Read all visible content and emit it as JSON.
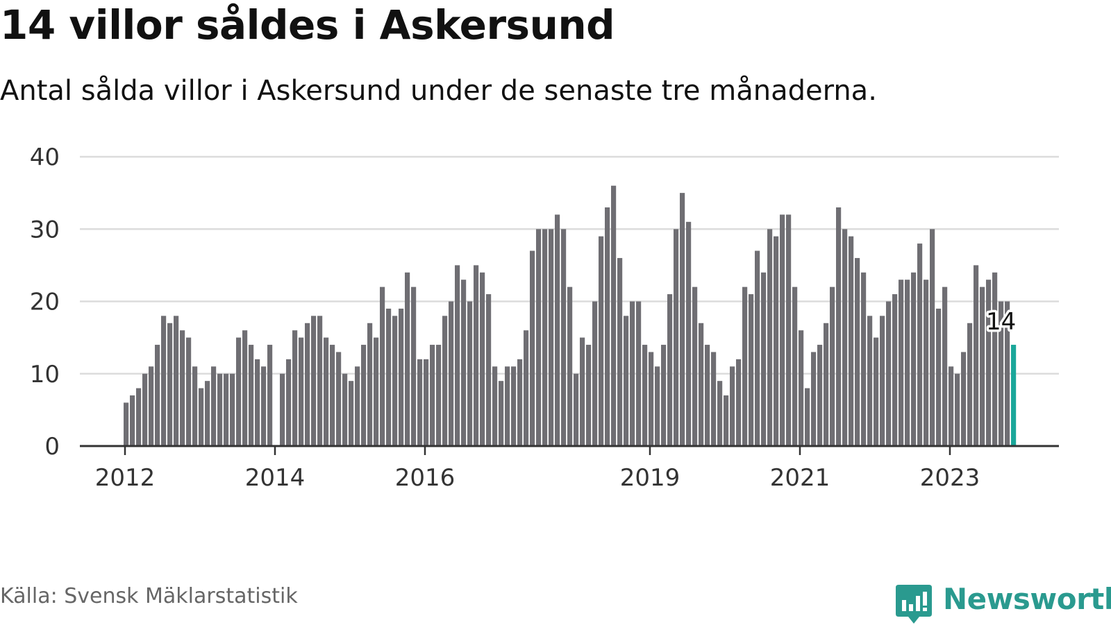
{
  "header": {
    "title": "14 villor såldes i Askersund",
    "subtitle": "Antal sålda villor i Askersund under de senaste tre månaderna."
  },
  "footer": {
    "source": "Källa: Svensk Mäklarstatistik",
    "brand": "Newsworthy"
  },
  "colors": {
    "bar": "#6f6e73",
    "highlight": "#1aa79a",
    "brand": "#2a9a8f",
    "grid": "#dcdcdc",
    "axis": "#333333"
  },
  "icons": {
    "brand_logo": "newsworthy-chart-bubble-icon"
  },
  "chart_data": {
    "type": "bar",
    "x_start": "2012-01",
    "ylim": [
      0,
      40
    ],
    "yticks": [
      0,
      10,
      20,
      30,
      40
    ],
    "xtick_labels": [
      {
        "label": "2012",
        "date": "2012-01"
      },
      {
        "label": "2014",
        "date": "2014-01"
      },
      {
        "label": "2016",
        "date": "2016-01"
      },
      {
        "label": "2019",
        "date": "2019-01"
      },
      {
        "label": "2021",
        "date": "2021-01"
      },
      {
        "label": "2023",
        "date": "2023-01"
      }
    ],
    "annotation": {
      "label": "14",
      "date": "2023-09",
      "value": 14
    },
    "values": [
      6,
      7,
      8,
      10,
      11,
      14,
      18,
      17,
      18,
      16,
      15,
      11,
      8,
      9,
      11,
      10,
      10,
      10,
      15,
      16,
      14,
      12,
      11,
      14,
      null,
      10,
      12,
      16,
      15,
      17,
      18,
      18,
      15,
      14,
      13,
      10,
      9,
      11,
      14,
      17,
      15,
      22,
      19,
      18,
      19,
      24,
      22,
      12,
      12,
      14,
      14,
      18,
      20,
      25,
      23,
      20,
      25,
      24,
      21,
      11,
      9,
      11,
      11,
      12,
      16,
      27,
      30,
      30,
      30,
      32,
      30,
      22,
      10,
      15,
      14,
      20,
      29,
      33,
      36,
      26,
      18,
      20,
      20,
      14,
      13,
      11,
      14,
      21,
      30,
      35,
      31,
      22,
      17,
      14,
      13,
      9,
      7,
      11,
      12,
      22,
      21,
      27,
      24,
      30,
      29,
      32,
      32,
      22,
      16,
      8,
      13,
      14,
      17,
      22,
      33,
      30,
      29,
      26,
      24,
      18,
      15,
      18,
      20,
      21,
      23,
      23,
      24,
      28,
      23,
      30,
      19,
      22,
      11,
      10,
      13,
      17,
      25,
      22,
      23,
      24,
      20,
      20,
      14
    ]
  }
}
